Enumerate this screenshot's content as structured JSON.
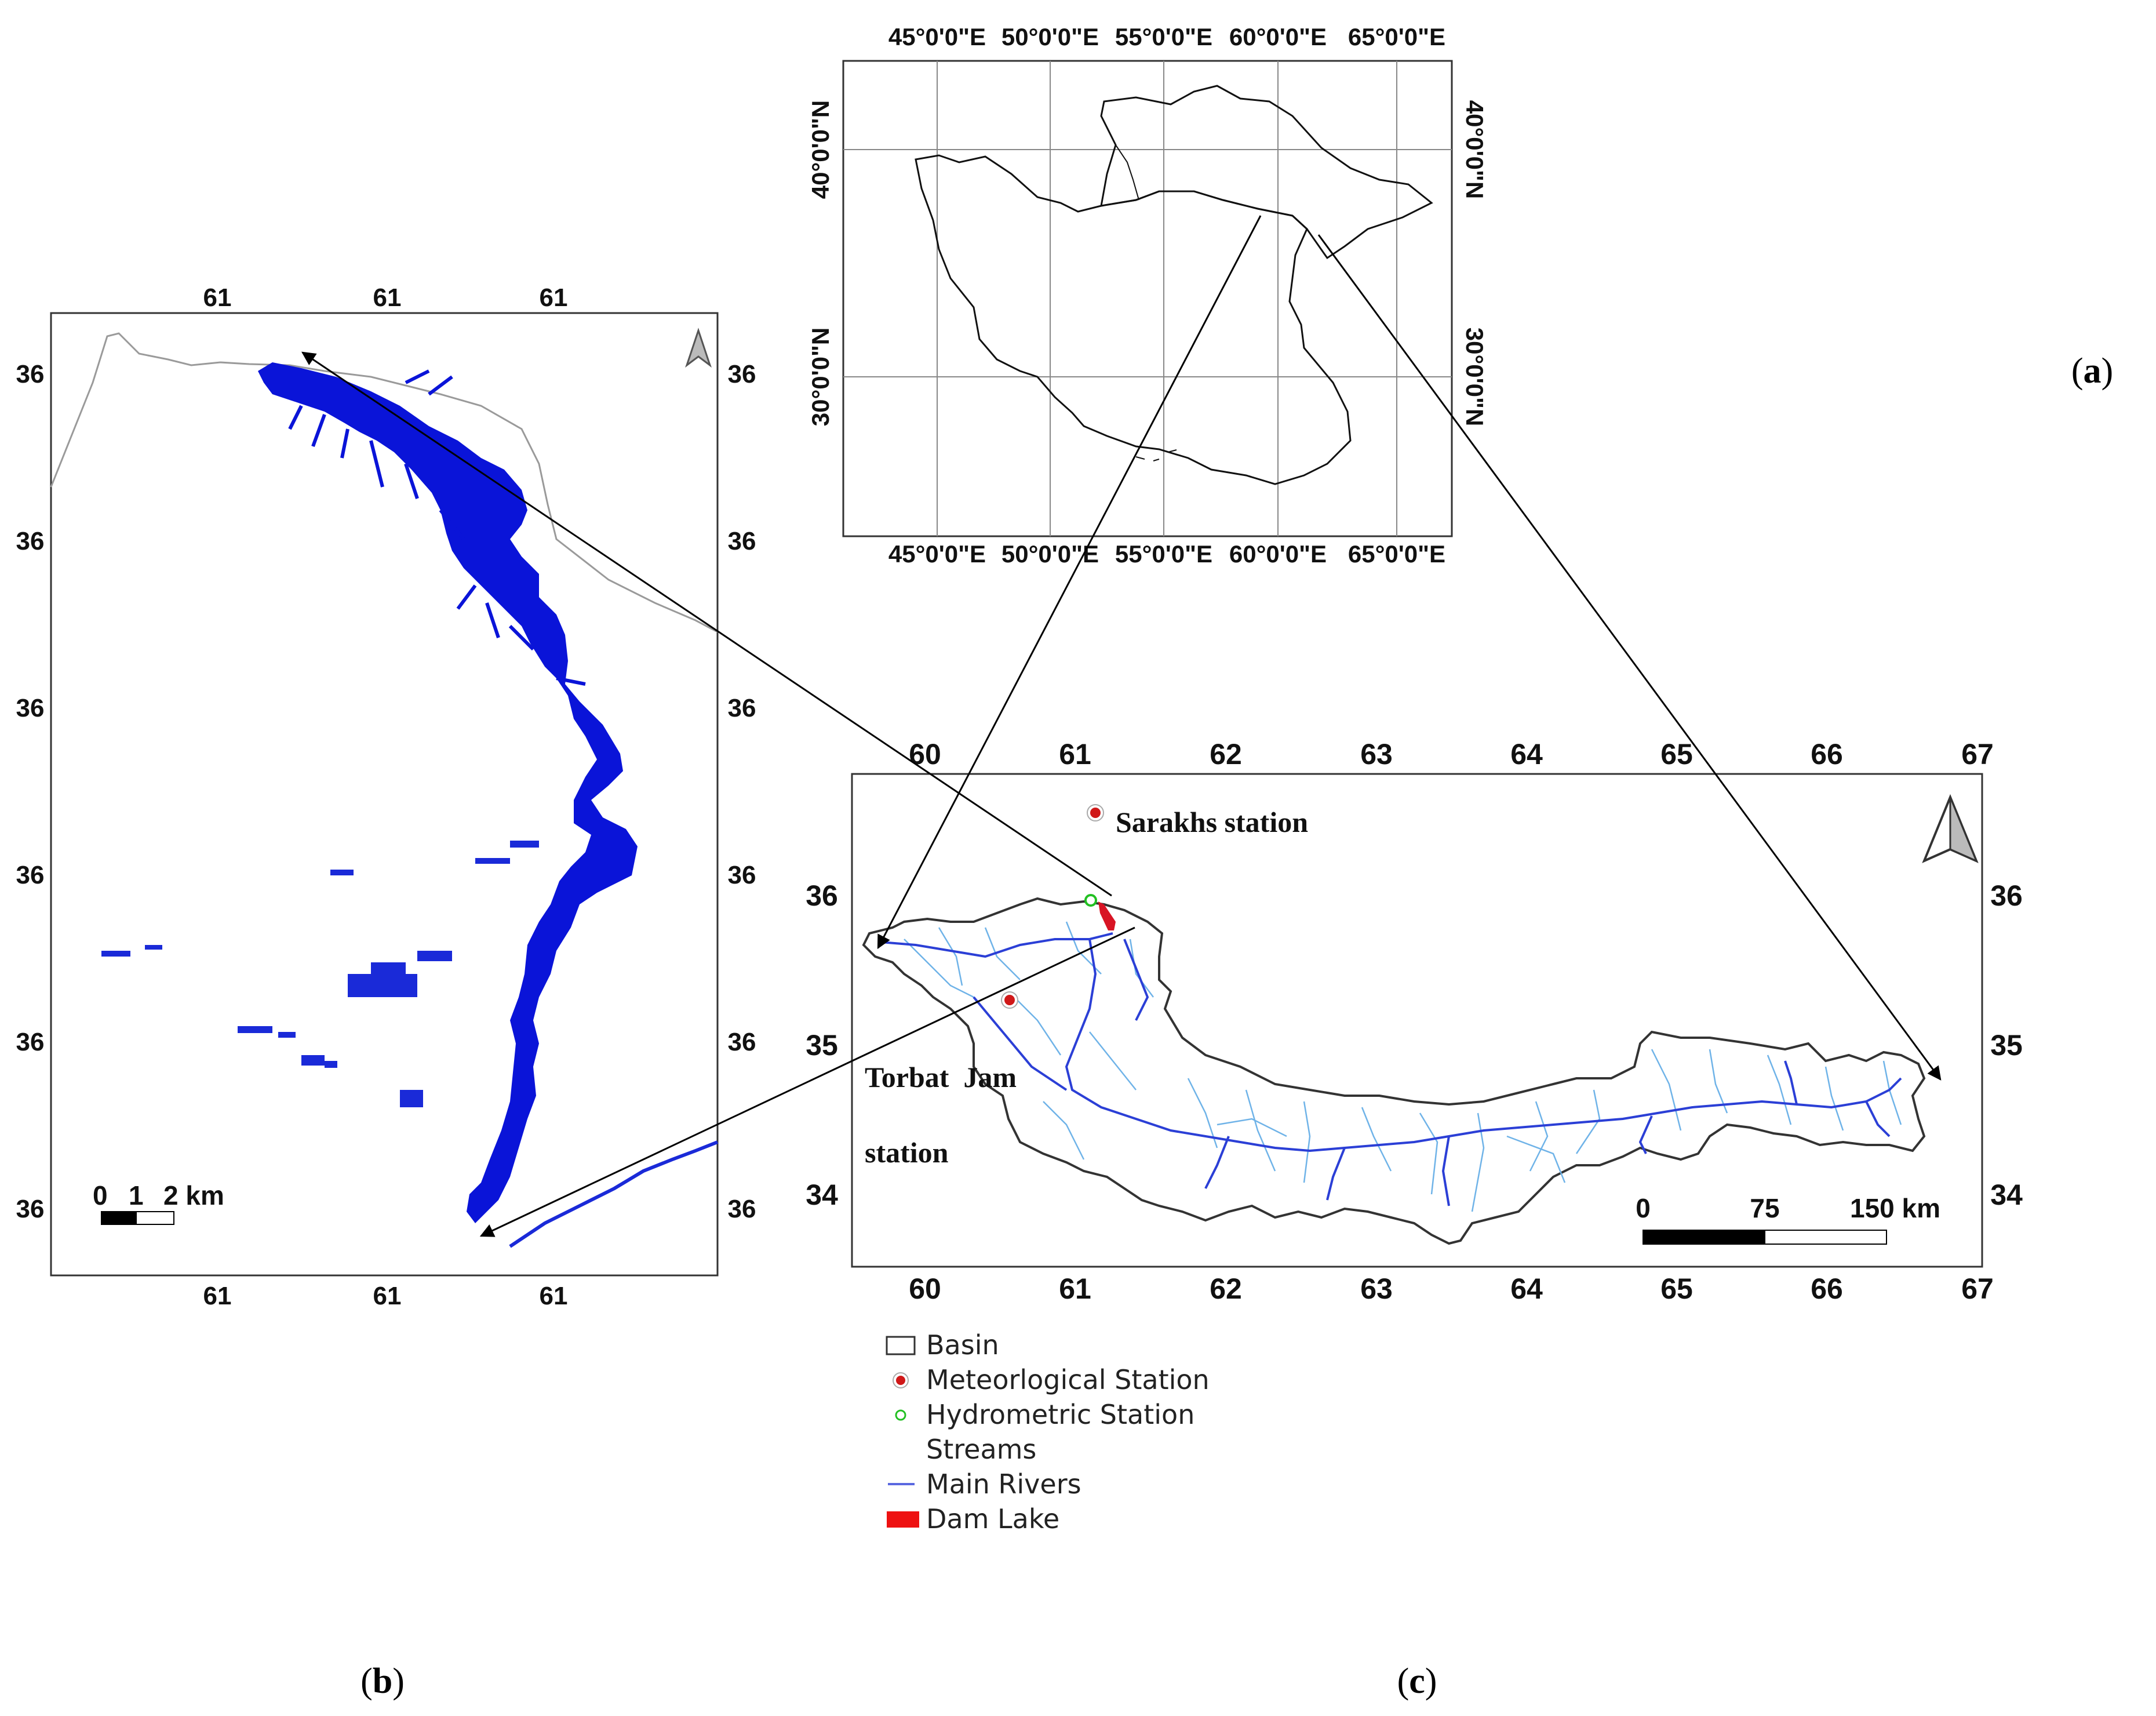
{
  "panels": {
    "a": {
      "label_open": "(",
      "label_letter": "a",
      "label_close": ")"
    },
    "b": {
      "label_open": "(",
      "label_letter": "b",
      "label_close": ")"
    },
    "c": {
      "label_open": "(",
      "label_letter": "c",
      "label_close": ")"
    }
  },
  "map_a": {
    "lon_ticks": [
      "45°0'0\"E",
      "50°0'0\"E",
      "55°0'0\"E",
      "60°0'0\"E",
      "65°0'0\"E"
    ],
    "lat_ticks": [
      "40°0'0\"N",
      "30°0'0\"N"
    ]
  },
  "map_b": {
    "x_ticks": [
      "61",
      "61",
      "61"
    ],
    "y_ticks": [
      "36",
      "36",
      "36",
      "36",
      "36",
      "36"
    ],
    "scale_labels": [
      "0",
      "1",
      "2 km"
    ],
    "colors": {
      "water": "#0a14d8",
      "border": "#9a9a9a"
    }
  },
  "map_c": {
    "x_ticks": [
      "60",
      "61",
      "62",
      "63",
      "64",
      "65",
      "66",
      "67"
    ],
    "y_ticks": [
      "36",
      "35",
      "34"
    ],
    "stations": {
      "sarakhs": "Sarakhs station",
      "torbat_line1": "Torbat  Jam",
      "torbat_line2": "station"
    },
    "scale_labels": [
      "0",
      "75",
      "150 km"
    ],
    "colors": {
      "rivers": "#2b3fd6",
      "streams": "#6fb3e8",
      "met_station": "#d01818",
      "hydro_station": "#22c022",
      "dam_lake": "#d81424"
    }
  },
  "legend": {
    "items": [
      "Basin",
      "Meteorlogical Station",
      "Hydrometric Station",
      "Streams",
      "Main Rivers",
      "Dam Lake"
    ]
  }
}
